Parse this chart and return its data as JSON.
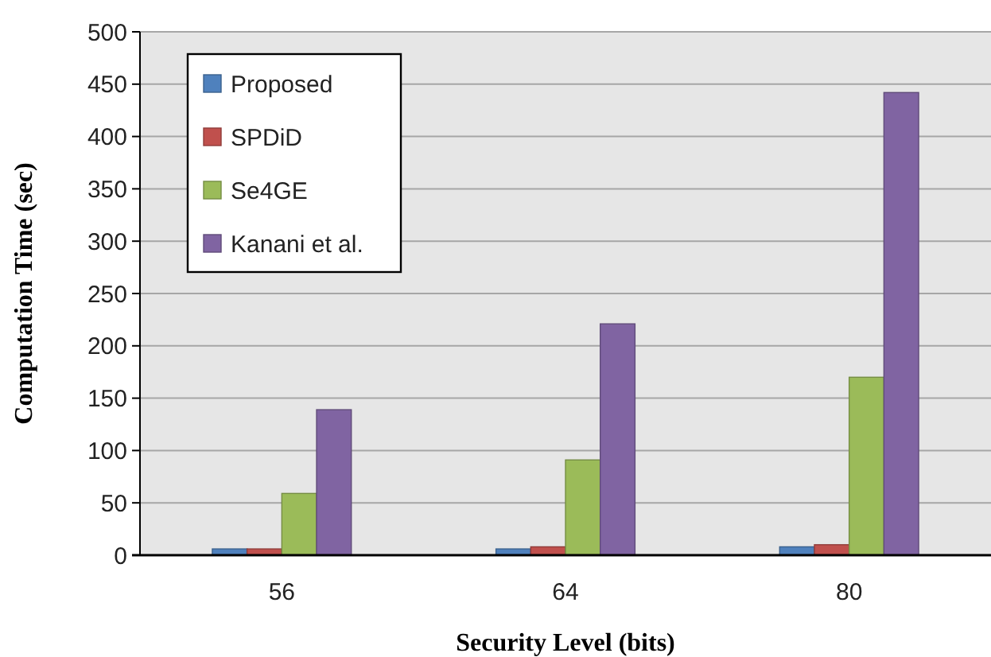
{
  "chart_data": {
    "type": "bar",
    "xlabel": "Security Level (bits)",
    "ylabel": "Computation Time (sec)",
    "categories": [
      "56",
      "64",
      "80"
    ],
    "series": [
      {
        "name": "Proposed",
        "color": "#4f81bd",
        "values": [
          6,
          6,
          8
        ]
      },
      {
        "name": "SPDiD",
        "color": "#c0504d",
        "values": [
          6,
          8,
          10
        ]
      },
      {
        "name": "Se4GE",
        "color": "#9bbb59",
        "values": [
          59,
          91,
          170
        ]
      },
      {
        "name": "Kanani et al.",
        "color": "#8064a2",
        "values": [
          139,
          221,
          442
        ]
      }
    ],
    "ylim": [
      0,
      500
    ],
    "yticks": [
      0,
      50,
      100,
      150,
      200,
      250,
      300,
      350,
      400,
      450,
      500
    ],
    "grid": "y",
    "legend": "top left"
  }
}
